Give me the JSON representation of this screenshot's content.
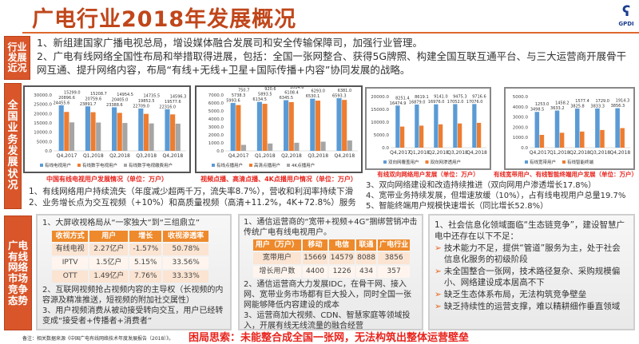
{
  "title": "广电行业2018年发展概况",
  "logo_text": "GPDI",
  "section1": {
    "label": [
      "行业",
      "发展",
      "近况"
    ],
    "lines": [
      "1、新组建国家广播电视总局，增设媒体融合发展司和安全传输保障司，加强行业管理。",
      "2、广电有线网络全国性布局和举措取得进展，包括：全国一张网整合、获得5G牌照、构建全国互联互通平台、与三大运营商开展骨干网互通、提升网络内容，布局“有线+无线+卫星+国际传播+内容”协同发展的战略。"
    ]
  },
  "section2": {
    "label": [
      "全",
      "国",
      "业",
      "务",
      "发",
      "展",
      "状",
      "况"
    ],
    "captions": [
      "中国有线电视用户发展情况（单位：万户）",
      "视频点播、高清点播、4K点播用户情况（单位：万户）",
      "有线双向网络用户发展（单位：万户）",
      "有线宽带用户、有线智能终端用户发展（单位：万户）"
    ],
    "points_left": [
      "1、有线网络用户持续流失（年度减少超两千万，流失率8.7%），营收和利润率持续下滑",
      "2、业务增长点为交互视频（+10%）和高质量视频（高清+11.2%，4K+72.8%）服务"
    ],
    "points_right": [
      "3、双向网络建设和改造持续推进（双向网用户渗透增长17.8%）",
      "4、宽带业务持续发展，但增速放缓（10%），占有线电视用户总量19.7%",
      "5、智能终端用户规模快速增长（同比增长52.8%）"
    ]
  },
  "chart_data": [
    {
      "type": "bar",
      "categories": [
        "Q4,2017",
        "Q1,2018",
        "Q2,2018",
        "Q3,2018",
        "Q4,2018"
      ],
      "ylim": [
        0,
        30000
      ],
      "ystep": 5000,
      "series": [
        {
          "name": "有线电视用户",
          "color": "#5b9bd5",
          "values": [
            24455.6,
            23891.7,
            23388.6,
            22709.0,
            22316.0
          ]
        },
        {
          "name": "有线数字电视用户",
          "color": "#ed7d31",
          "values": [
            20896.6,
            20759.6,
            20405.0,
            19852.5,
            19577.6
          ]
        },
        {
          "name": "有线数字电视缴费用户",
          "color": "#a5a5a5",
          "values": [
            15299.0,
            15208.7,
            14954.5,
            14735.5,
            14596.3
          ]
        }
      ]
    },
    {
      "type": "bar",
      "categories": [
        "Q4,2017",
        "Q1,2018",
        "Q2,2018",
        "Q3,2018",
        "Q4,2018"
      ],
      "ylim": [
        0,
        7000
      ],
      "ystep": 1000,
      "series": [
        {
          "name": "有线点播用户",
          "color": "#5b9bd5",
          "values": [
            5993.6,
            6134.5,
            6345.5,
            6530.1,
            6593.3
          ]
        },
        {
          "name": "高清点播用户",
          "color": "#ed7d31",
          "values": [
            5738.3,
            5893.5,
            6108.4,
            6293.0,
            6381.0
          ]
        },
        {
          "name": "4K点播用户",
          "color": "#a5a5a5",
          "values": [
            750.7,
            920.6,
            1014.6,
            1151.8,
            1297.2
          ]
        }
      ]
    },
    {
      "type": "bar",
      "categories": [
        "Q4,2017",
        "Q1,2018",
        "Q2,2018",
        "Q3,2018",
        "Q4,2018"
      ],
      "ylim": [
        0,
        20000
      ],
      "ystep": 5000,
      "series": [
        {
          "name": "双向网覆盖用户",
          "color": "#5b9bd5",
          "values": [
            16474.9,
            16879.0,
            16976.0,
            17052.0,
            17076.0
          ]
        },
        {
          "name": "双向网渗透用户",
          "color": "#ed7d31",
          "values": [
            8251.4,
            8619.1,
            9141.0,
            9475.3,
            9716.6
          ]
        }
      ]
    },
    {
      "type": "bar",
      "categories": [
        "Q4,2017",
        "Q1,2018",
        "Q2,2018",
        "Q3,2018",
        "Q4,2018"
      ],
      "ylim": [
        0,
        5000
      ],
      "ystep": 1000,
      "series": [
        {
          "name": "有线宽带用户",
          "color": "#5b9bd5",
          "values": [
            3498.5,
            3633.2,
            3825.8,
            3833.3,
            3856.3
          ]
        },
        {
          "name": "有线智能终端",
          "color": "#ed7d31",
          "values": [
            1253.0,
            1458.2,
            1577.4,
            1729.0,
            1914.3
          ]
        }
      ]
    }
  ],
  "section3": {
    "label": [
      "广电",
      "有线",
      "网络",
      "市场",
      "竞争",
      "态势"
    ],
    "box1": {
      "title": "1、大屏收视格局从“一家独大”到“三组鼎立”",
      "headers": [
        "收视方式",
        "用户",
        "增长",
        "收视渗透率"
      ],
      "rows": [
        [
          "有线电视",
          "2.27亿户",
          "-1.57%",
          "50.78%"
        ],
        [
          "IPTV",
          "1.5亿户",
          "5.15%",
          "33.56%"
        ],
        [
          "OTT",
          "1.49亿户",
          "7.76%",
          "33.33%"
        ]
      ],
      "lines": [
        "2、互联网视频抢占视频内容的主导权（长视频的内容源及精准推送，短视频的附加社交属性）",
        "3、用户视频消费从被动接受转向交互，用户已经转变成“接受者+传播者+消费者”"
      ]
    },
    "box2": {
      "title": "1、通信运营商的“宽带+视频+4G”捆绑营销冲击传统广电有线电视用户。",
      "headers": [
        "用户（万户）",
        "移动",
        "电信",
        "联通",
        "广电行业"
      ],
      "rows": [
        [
          "宽带用户",
          "15669",
          "14579",
          "8088",
          "3856"
        ],
        [
          "增长用户数",
          "4400",
          "1226",
          "434",
          "357"
        ]
      ],
      "lines": [
        "2、通信运营商大力发展IDC，在骨干网、接入网、宽带业务市场都有巨大投入，同时全国一张网能够降低内容建设的成本",
        "3、运营商加大视频、CDN、智慧家庭等领域投入，开展有线无线流量的融合经营"
      ]
    },
    "box3": {
      "title": "1、社会信息化领域面临“生态链竞争”，建设智慧广电中还存在以下不足：",
      "bullets": [
        "技术能力不足，提供“管道”服务为主，处于社会信息化服务的初级阶段",
        "未全国整合一张网，技术路径复杂、采购规模偏小、网络建设成本居高不下",
        "缺乏生态体系布局，无法构筑竞争壁垒",
        "缺乏持续性的运营支撑，难以精耕细作垂直领域"
      ]
    }
  },
  "footer": {
    "note": "备注：相关数据来源《中国广电有线网络技术年度发展报告（2018）》。",
    "conclusion": "困局思索：未能整合成全国一张网，无法构筑出整体运营壁垒"
  }
}
